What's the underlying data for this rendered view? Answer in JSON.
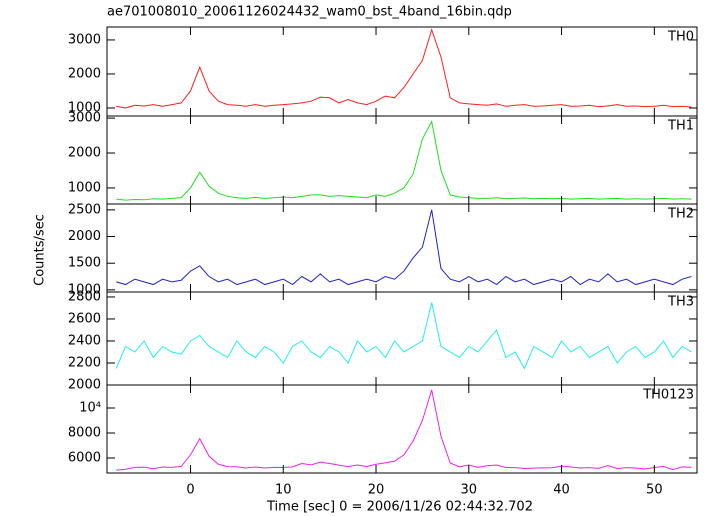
{
  "title": "ae701008010_20061126024432_wam0_bst_4band_16bin.qdp",
  "y_label": "Counts/sec",
  "x_label": "Time [sec] 0 = 2006/11/26 02:44:32.702",
  "chart_data": [
    {
      "type": "line",
      "x": [
        -8,
        -7,
        -6,
        -5,
        -4,
        -3,
        -2,
        -1,
        0,
        1,
        2,
        3,
        4,
        5,
        6,
        7,
        8,
        9,
        10,
        11,
        12,
        13,
        14,
        15,
        16,
        17,
        18,
        19,
        20,
        21,
        22,
        23,
        24,
        25,
        26,
        27,
        28,
        29,
        30,
        31,
        32,
        33,
        34,
        35,
        36,
        37,
        38,
        39,
        40,
        41,
        42,
        43,
        44,
        45,
        46,
        47,
        48,
        49,
        50,
        51,
        52,
        53,
        54
      ],
      "series": [
        {
          "name": "TH0",
          "color": "#ff2020",
          "values": [
            1050,
            1000,
            1080,
            1060,
            1100,
            1050,
            1100,
            1150,
            1500,
            2200,
            1500,
            1200,
            1100,
            1080,
            1050,
            1100,
            1050,
            1080,
            1100,
            1120,
            1150,
            1200,
            1320,
            1300,
            1150,
            1250,
            1150,
            1100,
            1200,
            1350,
            1300,
            1600,
            2000,
            2400,
            3300,
            2500,
            1300,
            1150,
            1120,
            1100,
            1080,
            1120,
            1050,
            1080,
            1100,
            1050,
            1060,
            1080,
            1100,
            1050,
            1060,
            1080,
            1040,
            1060,
            1100,
            1050,
            1060,
            1040,
            1050,
            1080,
            1040,
            1050,
            1030
          ]
        }
      ],
      "xlim": [
        -9,
        54.6
      ],
      "xticks": [
        0,
        10,
        20,
        30,
        40,
        50
      ],
      "ylim": [
        765,
        3380
      ],
      "yticks": [
        1000,
        2000,
        3000
      ]
    },
    {
      "type": "line",
      "x": [
        -8,
        -7,
        -6,
        -5,
        -4,
        -3,
        -2,
        -1,
        0,
        1,
        2,
        3,
        4,
        5,
        6,
        7,
        8,
        9,
        10,
        11,
        12,
        13,
        14,
        15,
        16,
        17,
        18,
        19,
        20,
        21,
        22,
        23,
        24,
        25,
        26,
        27,
        28,
        29,
        30,
        31,
        32,
        33,
        34,
        35,
        36,
        37,
        38,
        39,
        40,
        41,
        42,
        43,
        44,
        45,
        46,
        47,
        48,
        49,
        50,
        51,
        52,
        53,
        54
      ],
      "series": [
        {
          "name": "TH1",
          "color": "#22dd22",
          "values": [
            680,
            650,
            670,
            660,
            690,
            680,
            700,
            720,
            1000,
            1450,
            1050,
            850,
            760,
            720,
            700,
            730,
            700,
            720,
            740,
            720,
            760,
            800,
            800,
            760,
            780,
            760,
            740,
            720,
            800,
            760,
            850,
            1000,
            1400,
            2400,
            2900,
            1500,
            800,
            740,
            720,
            700,
            700,
            720,
            690,
            700,
            710,
            690,
            700,
            690,
            700,
            680,
            690,
            700,
            680,
            690,
            700,
            680,
            690,
            680,
            690,
            700,
            680,
            690,
            680
          ]
        }
      ],
      "xlim": [
        -9,
        54.6
      ],
      "xticks": [
        0,
        10,
        20,
        30,
        40,
        50
      ],
      "ylim": [
        540,
        3060
      ],
      "yticks": [
        1000,
        2000,
        3000
      ]
    },
    {
      "type": "line",
      "x": [
        -8,
        -7,
        -6,
        -5,
        -4,
        -3,
        -2,
        -1,
        0,
        1,
        2,
        3,
        4,
        5,
        6,
        7,
        8,
        9,
        10,
        11,
        12,
        13,
        14,
        15,
        16,
        17,
        18,
        19,
        20,
        21,
        22,
        23,
        24,
        25,
        26,
        27,
        28,
        29,
        30,
        31,
        32,
        33,
        34,
        35,
        36,
        37,
        38,
        39,
        40,
        41,
        42,
        43,
        44,
        45,
        46,
        47,
        48,
        49,
        50,
        51,
        52,
        53,
        54
      ],
      "series": [
        {
          "name": "TH2",
          "color": "#2222cc",
          "values": [
            1150,
            1100,
            1200,
            1150,
            1100,
            1200,
            1150,
            1180,
            1350,
            1450,
            1250,
            1150,
            1200,
            1100,
            1150,
            1200,
            1100,
            1150,
            1200,
            1100,
            1250,
            1150,
            1300,
            1150,
            1200,
            1100,
            1150,
            1200,
            1150,
            1250,
            1200,
            1350,
            1600,
            1800,
            2500,
            1400,
            1200,
            1150,
            1250,
            1150,
            1200,
            1100,
            1250,
            1150,
            1200,
            1100,
            1150,
            1200,
            1150,
            1250,
            1100,
            1200,
            1150,
            1300,
            1150,
            1200,
            1100,
            1150,
            1200,
            1150,
            1100,
            1200,
            1250
          ]
        }
      ],
      "xlim": [
        -9,
        54.6
      ],
      "xticks": [
        0,
        10,
        20,
        30,
        40,
        50
      ],
      "ylim": [
        960,
        2610
      ],
      "yticks": [
        1000,
        1500,
        2000,
        2500
      ]
    },
    {
      "type": "line",
      "x": [
        -8,
        -7,
        -6,
        -5,
        -4,
        -3,
        -2,
        -1,
        0,
        1,
        2,
        3,
        4,
        5,
        6,
        7,
        8,
        9,
        10,
        11,
        12,
        13,
        14,
        15,
        16,
        17,
        18,
        19,
        20,
        21,
        22,
        23,
        24,
        25,
        26,
        27,
        28,
        29,
        30,
        31,
        32,
        33,
        34,
        35,
        36,
        37,
        38,
        39,
        40,
        41,
        42,
        43,
        44,
        45,
        46,
        47,
        48,
        49,
        50,
        51,
        52,
        53,
        54
      ],
      "series": [
        {
          "name": "TH3",
          "color": "#22eeee",
          "values": [
            2150,
            2350,
            2300,
            2400,
            2250,
            2350,
            2300,
            2280,
            2400,
            2450,
            2350,
            2300,
            2250,
            2400,
            2300,
            2250,
            2350,
            2300,
            2200,
            2350,
            2400,
            2300,
            2250,
            2350,
            2300,
            2200,
            2400,
            2300,
            2350,
            2250,
            2400,
            2300,
            2350,
            2400,
            2750,
            2350,
            2300,
            2250,
            2350,
            2300,
            2400,
            2500,
            2250,
            2300,
            2150,
            2350,
            2300,
            2250,
            2400,
            2300,
            2350,
            2250,
            2300,
            2350,
            2200,
            2300,
            2350,
            2250,
            2300,
            2400,
            2250,
            2350,
            2300
          ]
        }
      ],
      "xlim": [
        -9,
        54.6
      ],
      "xticks": [
        0,
        10,
        20,
        30,
        40,
        50
      ],
      "ylim": [
        2000,
        2845
      ],
      "yticks": [
        2000,
        2200,
        2400,
        2600,
        2800
      ]
    },
    {
      "type": "line",
      "x": [
        -8,
        -7,
        -6,
        -5,
        -4,
        -3,
        -2,
        -1,
        0,
        1,
        2,
        3,
        4,
        5,
        6,
        7,
        8,
        9,
        10,
        11,
        12,
        13,
        14,
        15,
        16,
        17,
        18,
        19,
        20,
        21,
        22,
        23,
        24,
        25,
        26,
        27,
        28,
        29,
        30,
        31,
        32,
        33,
        34,
        35,
        36,
        37,
        38,
        39,
        40,
        41,
        42,
        43,
        44,
        45,
        46,
        47,
        48,
        49,
        50,
        51,
        52,
        53,
        54
      ],
      "series": [
        {
          "name": "TH0123",
          "color": "#ee22ee",
          "values": [
            5030,
            5100,
            5250,
            5270,
            5140,
            5280,
            5250,
            5330,
            6250,
            7550,
            6150,
            5500,
            5310,
            5300,
            5200,
            5280,
            5200,
            5250,
            5240,
            5290,
            5560,
            5450,
            5670,
            5560,
            5430,
            5310,
            5440,
            5320,
            5500,
            5610,
            5750,
            6250,
            7350,
            9000,
            11450,
            7750,
            5600,
            5290,
            5440,
            5250,
            5380,
            5440,
            5240,
            5230,
            5160,
            5190,
            5210,
            5220,
            5350,
            5280,
            5200,
            5230,
            5170,
            5400,
            5150,
            5230,
            5200,
            5120,
            5240,
            5330,
            5070,
            5290,
            5260
          ]
        }
      ],
      "xlim": [
        -9,
        54.6
      ],
      "xticks": [
        0,
        10,
        20,
        30,
        40,
        50
      ],
      "ylim": [
        4800,
        11840
      ],
      "yticks": [
        6000,
        8000,
        {
          "value": 10000,
          "label": "10⁴"
        }
      ]
    }
  ]
}
